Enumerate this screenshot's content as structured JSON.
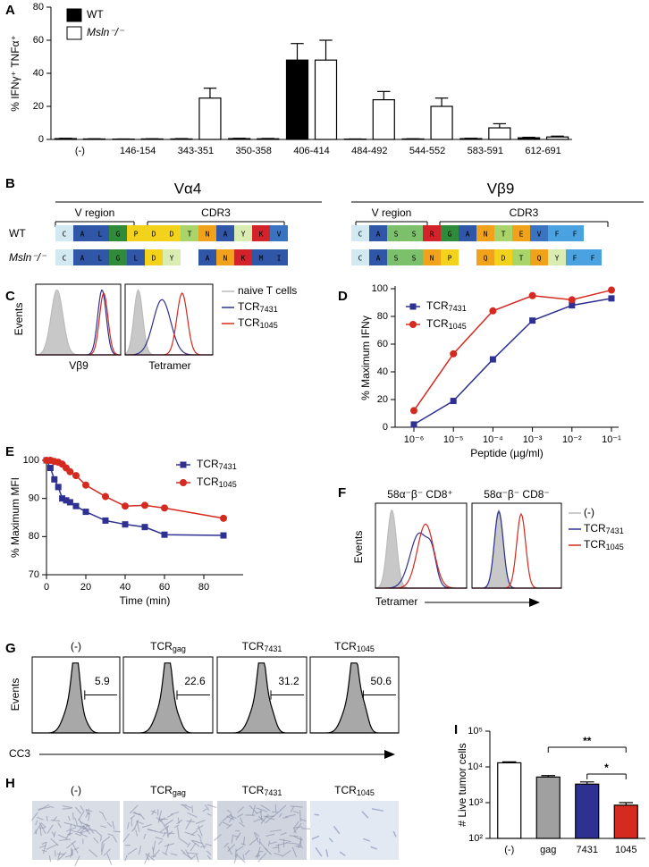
{
  "panel_labels": [
    "A",
    "B",
    "C",
    "D",
    "E",
    "F",
    "G",
    "H",
    "I"
  ],
  "chart_data": [
    {
      "type": "bar",
      "ylabel": "% IFNγ⁺ TNFα⁺",
      "categories": [
        "(-)",
        "146-154",
        "343-351",
        "350-358",
        "406-414",
        "484-492",
        "544-552",
        "583-591",
        "612-691"
      ],
      "series": [
        {
          "name": "WT",
          "color": "#000000",
          "values": [
            0.5,
            0.2,
            0.3,
            0.5,
            48,
            0.2,
            0.3,
            0.5,
            1
          ],
          "errors": [
            0.2,
            0.1,
            0.2,
            0.2,
            10,
            0.1,
            0.1,
            0.2,
            0.3
          ]
        },
        {
          "name": "Msln⁻/⁻",
          "color": "#ffffff",
          "values": [
            0.3,
            0.3,
            25,
            0.4,
            48,
            24,
            20,
            7,
            1.5
          ],
          "errors": [
            0.1,
            0.1,
            6,
            0.2,
            12,
            5,
            5,
            2.5,
            0.5
          ]
        }
      ],
      "ylim": [
        0,
        80
      ],
      "yticks": [
        0,
        20,
        40,
        60,
        80
      ],
      "legend": "upper left"
    },
    {
      "type": "line",
      "ylabel": "% Maximum IFNγ",
      "xlabel": "Peptide (µg/ml)",
      "log_x": true,
      "x": [
        1e-06,
        1e-05,
        0.0001,
        0.001,
        0.01,
        0.1
      ],
      "series": [
        {
          "name": {
            "text": "TCR",
            "sub": "7431"
          },
          "color": "#2e3192",
          "marker": "square",
          "values": [
            2,
            19,
            49,
            77,
            88,
            93
          ]
        },
        {
          "name": {
            "text": "TCR",
            "sub": "1045"
          },
          "color": "#d42a20",
          "marker": "circle",
          "values": [
            12,
            53,
            84,
            95,
            92,
            99
          ]
        }
      ],
      "xlim": [
        1e-06,
        0.1
      ],
      "xticks": [
        {
          "value": 1e-06,
          "label": "10⁻⁶"
        },
        {
          "value": 1e-05,
          "label": "10⁻⁵"
        },
        {
          "value": 0.0001,
          "label": "10⁻⁴"
        },
        {
          "value": 0.001,
          "label": "10⁻³"
        },
        {
          "value": 0.01,
          "label": "10⁻²"
        },
        {
          "value": 0.1,
          "label": "10⁻¹"
        }
      ],
      "ylim": [
        0,
        100
      ],
      "yticks": [
        0,
        20,
        40,
        60,
        80,
        100
      ],
      "legend": "upper left"
    },
    {
      "type": "line",
      "ylabel": "% Maximum MFI",
      "xlabel": "Time (min)",
      "x": [
        0,
        2,
        4,
        6,
        8,
        10,
        12,
        15,
        20,
        30,
        40,
        50,
        60,
        90
      ],
      "series": [
        {
          "name": {
            "text": "TCR",
            "sub": "7431"
          },
          "color": "#2e3192",
          "marker": "square",
          "values": [
            100,
            98,
            95,
            93,
            90,
            89.5,
            89,
            88,
            86.5,
            84.2,
            83.2,
            82.5,
            80.5,
            80.3
          ]
        },
        {
          "name": {
            "text": "TCR",
            "sub": "1045"
          },
          "color": "#d42a20",
          "marker": "circle",
          "values": [
            100,
            100,
            99.7,
            99.5,
            99,
            98,
            97,
            96,
            93.5,
            90.5,
            88,
            88.2,
            87.5,
            84.8
          ]
        }
      ],
      "xlim": [
        0,
        100
      ],
      "xticks": [
        0,
        20,
        40,
        60,
        80
      ],
      "ylim": [
        70,
        100
      ],
      "yticks": [
        70,
        80,
        90,
        100
      ],
      "legend": "upper right"
    },
    {
      "type": "bar",
      "ylabel": "# Live tumor cells",
      "log_y": true,
      "categories": [
        "(-)",
        "gag",
        "7431",
        "1045"
      ],
      "values": [
        13000,
        5200,
        3300,
        850
      ],
      "errors": [
        800,
        500,
        500,
        150
      ],
      "colors": [
        "#ffffff",
        "#a0a0a0",
        "#2e3192",
        "#d42a20"
      ],
      "ylim": [
        100,
        100000
      ],
      "yticks": [
        {
          "value": 100,
          "label": "10²"
        },
        {
          "value": 1000,
          "label": "10³"
        },
        {
          "value": 10000,
          "label": "10⁴"
        },
        {
          "value": 100000,
          "label": "10⁵"
        }
      ],
      "annotations": [
        "**",
        "*"
      ]
    }
  ],
  "alignment": {
    "rows": [
      "WT",
      "Msln⁻/⁻"
    ],
    "blocks": [
      {
        "title": "Vα4",
        "regions": [
          "V region",
          "CDR3"
        ],
        "sequences": [
          [
            "C",
            "A",
            "L",
            "G",
            "P",
            "D",
            "D",
            "T",
            "N",
            "A",
            "Y",
            "K",
            "V"
          ],
          [
            "C",
            "A",
            "L",
            "G",
            "L",
            "D",
            "Y",
            null,
            "A",
            "N",
            "K",
            "M",
            "I"
          ]
        ]
      },
      {
        "title": "Vβ9",
        "regions": [
          "V region",
          "CDR3"
        ],
        "sequences": [
          [
            "C",
            "A",
            "S",
            "S",
            "R",
            "G",
            "A",
            "N",
            "T",
            "E",
            "V",
            "F",
            "F"
          ],
          [
            "C",
            "A",
            "S",
            "S",
            "N",
            "P",
            null,
            "Q",
            "D",
            "T",
            "Q",
            "Y",
            "F",
            "F"
          ]
        ]
      }
    ]
  },
  "flow_c": {
    "ylabel": "Events",
    "xlabels": [
      "Vβ9",
      "Tetramer"
    ],
    "legend": [
      "naive T cells",
      {
        "text": "TCR",
        "sub": "7431"
      },
      {
        "text": "TCR",
        "sub": "1045"
      }
    ]
  },
  "flow_f": {
    "titles": [
      "58α⁻β⁻ CD8⁺",
      "58α⁻β⁻ CD8⁻"
    ],
    "ylabel": "Events",
    "xlabel": "Tetramer",
    "legend": [
      "(-)",
      {
        "text": "TCR",
        "sub": "7431"
      },
      {
        "text": "TCR",
        "sub": "1045"
      }
    ]
  },
  "flow_g": {
    "titles": [
      "(-)",
      {
        "text": "TCR",
        "sub": "gag"
      },
      {
        "text": "TCR",
        "sub": "7431"
      },
      {
        "text": "TCR",
        "sub": "1045"
      }
    ],
    "gates": [
      5.9,
      22.6,
      31.2,
      50.6
    ],
    "ylabel": "Events",
    "xlabel": "CC3"
  },
  "images_h": {
    "titles": [
      "(-)",
      {
        "text": "TCR",
        "sub": "gag"
      },
      {
        "text": "TCR",
        "sub": "7431"
      },
      {
        "text": "TCR",
        "sub": "1045"
      }
    ]
  }
}
